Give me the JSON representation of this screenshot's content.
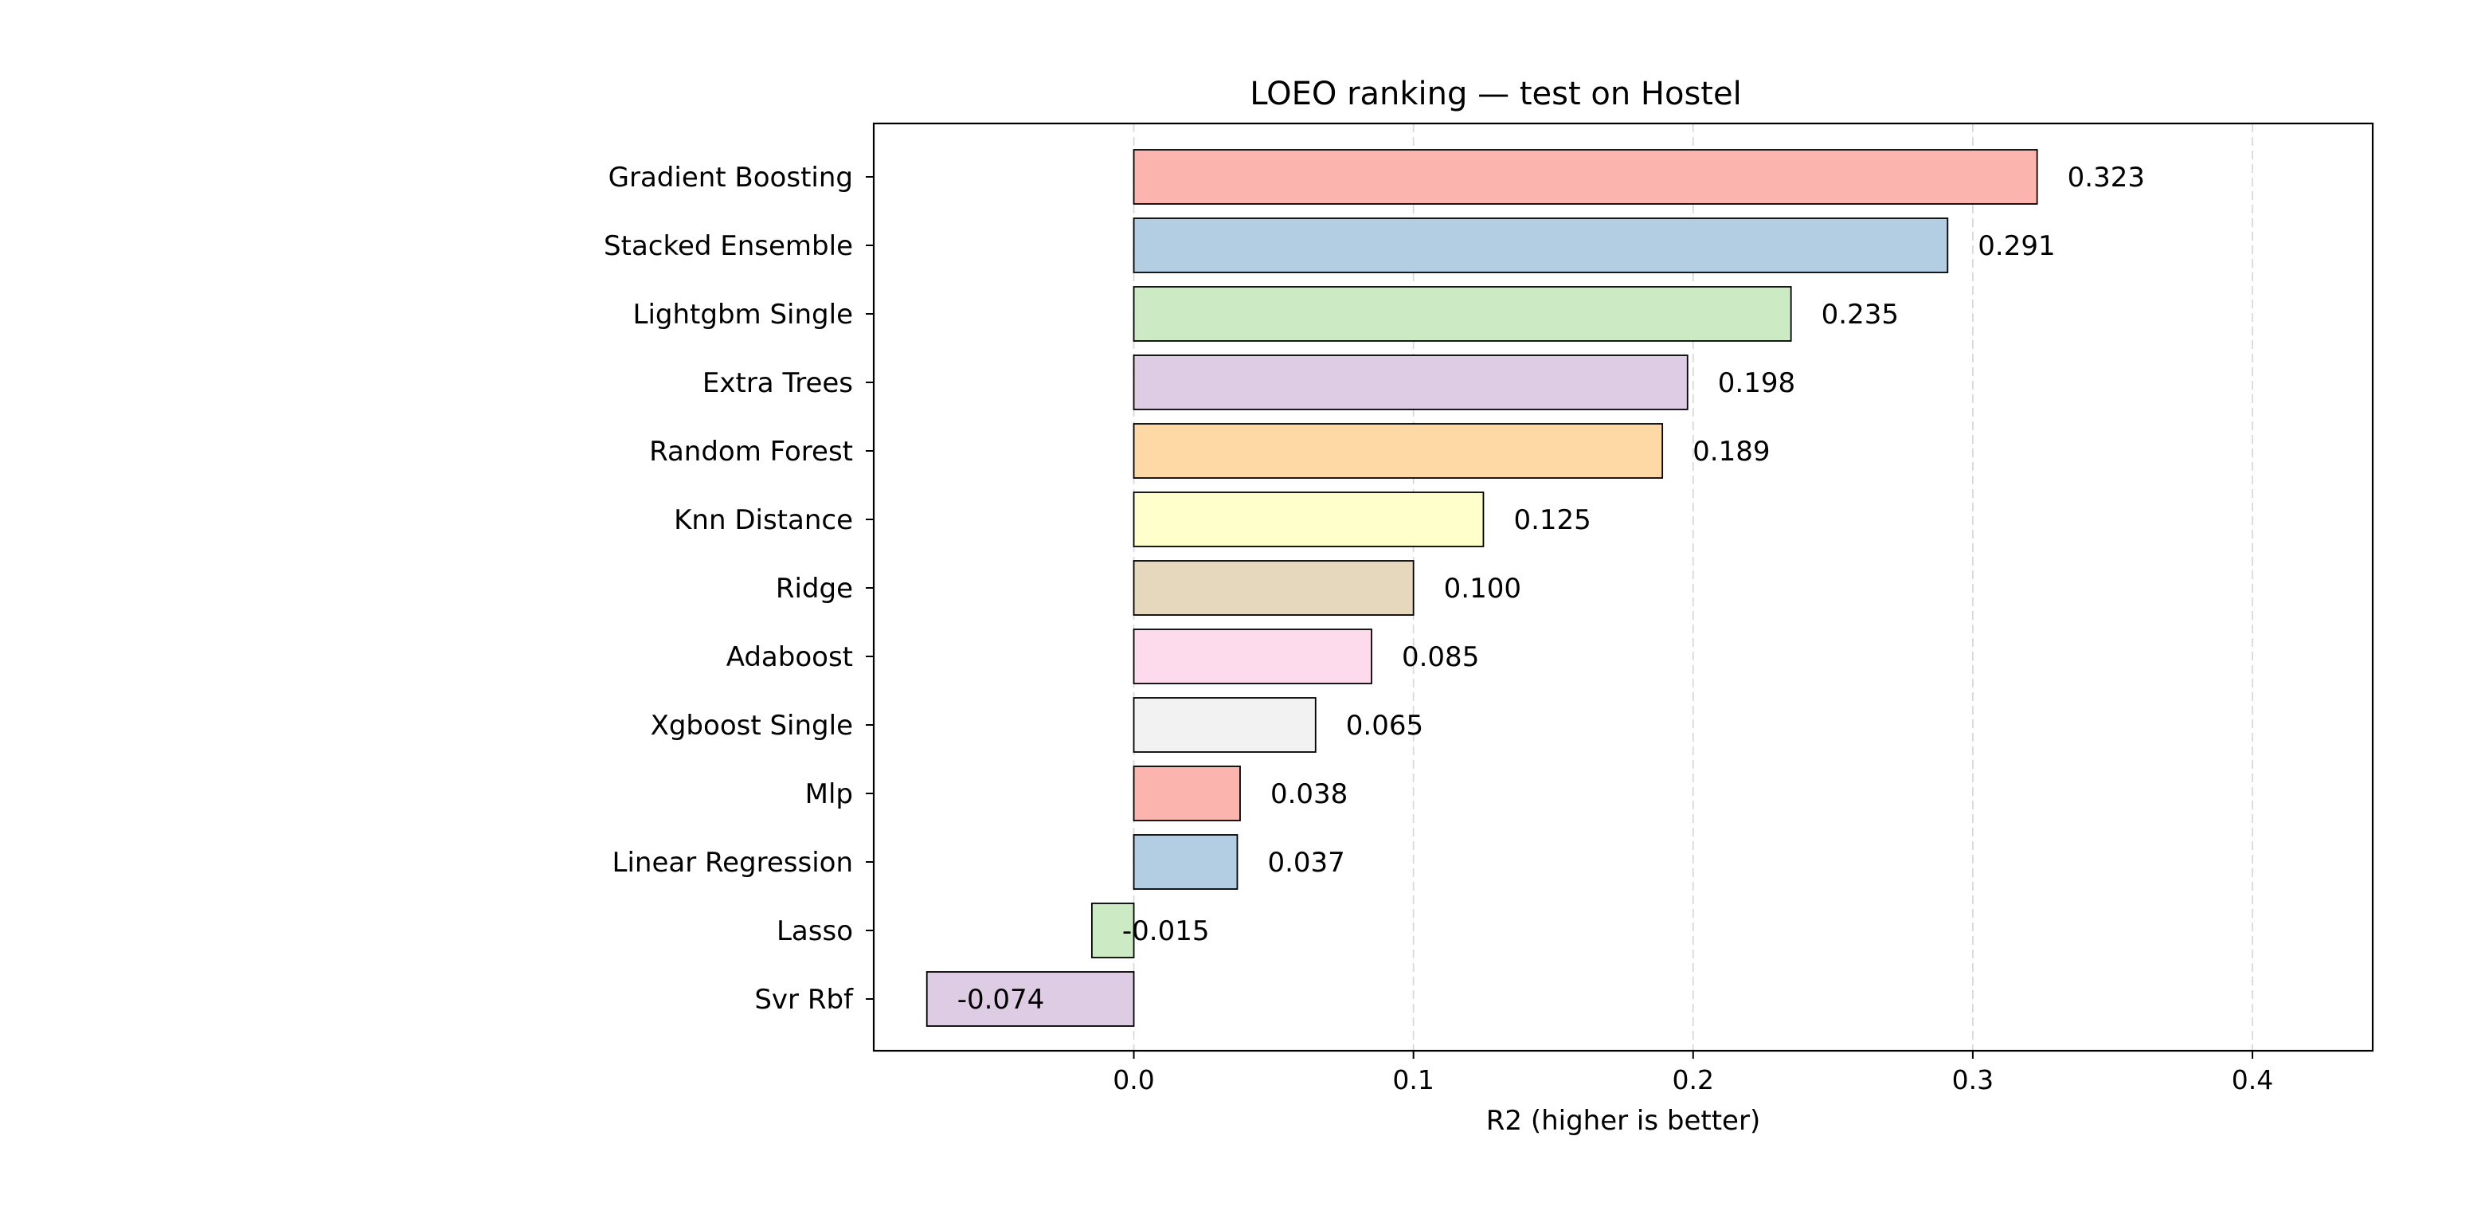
{
  "chart_data": {
    "type": "bar",
    "orientation": "horizontal",
    "title": "LOEO ranking — test on Hostel",
    "xlabel": "R2 (higher is better)",
    "ylabel": "",
    "xlim": [
      -0.093,
      0.443
    ],
    "xticks": [
      0.0,
      0.1,
      0.2,
      0.3,
      0.4
    ],
    "xtick_labels": [
      "0.0",
      "0.1",
      "0.2",
      "0.3",
      "0.4"
    ],
    "grid": "x-axis dashed",
    "categories": [
      "Gradient Boosting",
      "Stacked Ensemble",
      "Lightgbm Single",
      "Extra Trees",
      "Random Forest",
      "Knn Distance",
      "Ridge",
      "Adaboost",
      "Xgboost Single",
      "Mlp",
      "Linear Regression",
      "Lasso",
      "Svr Rbf"
    ],
    "values": [
      0.323,
      0.291,
      0.235,
      0.198,
      0.189,
      0.125,
      0.1,
      0.085,
      0.065,
      0.038,
      0.037,
      -0.015,
      -0.074
    ],
    "value_labels": [
      "0.323",
      "0.291",
      "0.235",
      "0.198",
      "0.189",
      "0.125",
      "0.100",
      "0.085",
      "0.065",
      "0.038",
      "0.037",
      "-0.015",
      "-0.074"
    ],
    "colors": [
      "#fbb4ae",
      "#b3cde3",
      "#ccebc5",
      "#decbe4",
      "#fed9a6",
      "#ffffcc",
      "#e5d8bd",
      "#fddaec",
      "#f2f2f2",
      "#fbb4ae",
      "#b3cde3",
      "#ccebc5",
      "#decbe4"
    ]
  }
}
